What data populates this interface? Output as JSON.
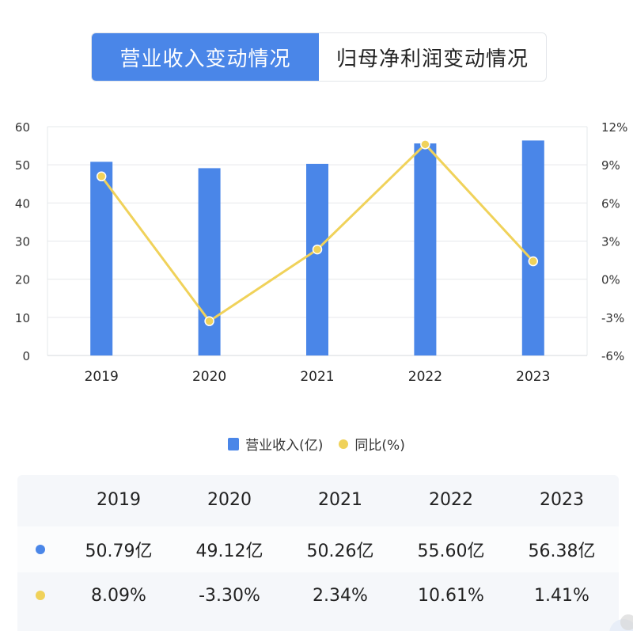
{
  "tabs": [
    {
      "label": "营业收入变动情况",
      "active": true
    },
    {
      "label": "归母净利润变动情况",
      "active": false
    }
  ],
  "colors": {
    "bar": "#4a86e8",
    "line": "#f0d25a",
    "grid": "#e6e8eb",
    "tab_active": "#4a86e8"
  },
  "chart_data": {
    "type": "bar",
    "categories": [
      "2019",
      "2020",
      "2021",
      "2022",
      "2023"
    ],
    "series": [
      {
        "name": "营业收入(亿)",
        "type": "bar",
        "axis": "left",
        "values": [
          50.79,
          49.12,
          50.26,
          55.6,
          56.38
        ]
      },
      {
        "name": "同比(%)",
        "type": "line",
        "axis": "right",
        "values": [
          8.09,
          -3.3,
          2.34,
          10.61,
          1.41
        ]
      }
    ],
    "left_axis": {
      "ylim": [
        0,
        60
      ],
      "ticks": [
        "0",
        "10",
        "20",
        "30",
        "40",
        "50",
        "60"
      ]
    },
    "right_axis": {
      "ylim": [
        -6,
        12
      ],
      "ticks": [
        "-6%",
        "-3%",
        "0%",
        "3%",
        "6%",
        "9%",
        "12%"
      ]
    },
    "grid": true,
    "legend_position": "bottom"
  },
  "legend": {
    "bar_label": "营业收入(亿)",
    "line_label": "同比(%)"
  },
  "table": {
    "header": [
      "2019",
      "2020",
      "2021",
      "2022",
      "2023"
    ],
    "revenue_row": [
      "50.79亿",
      "49.12亿",
      "50.26亿",
      "55.60亿",
      "56.38亿"
    ],
    "yoy_row": [
      "8.09%",
      "-3.30%",
      "2.34%",
      "10.61%",
      "1.41%"
    ]
  }
}
